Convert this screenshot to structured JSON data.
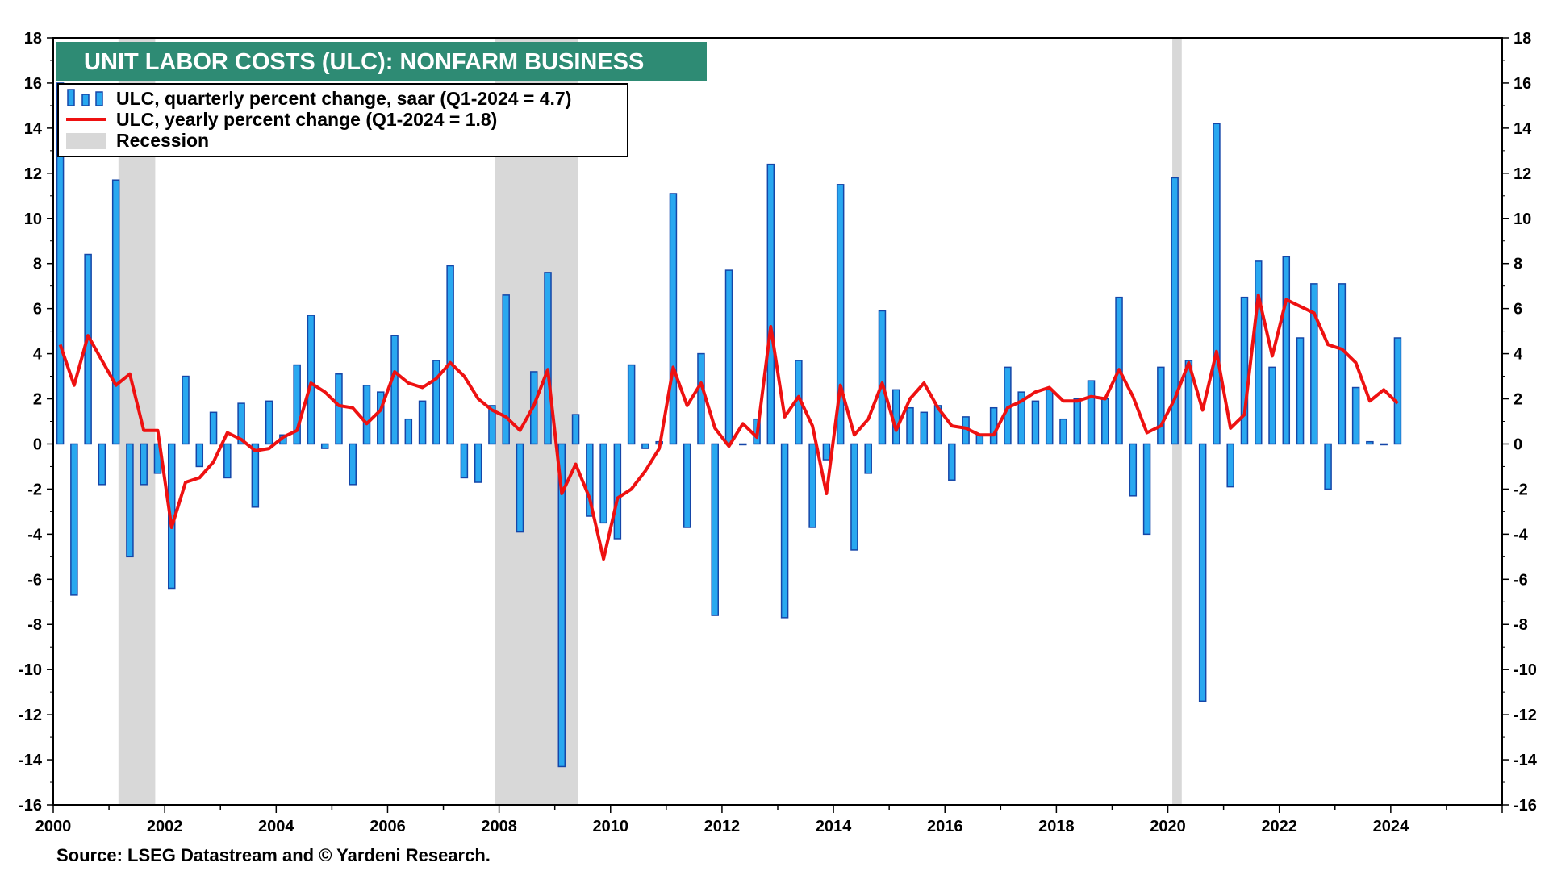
{
  "chart_data": {
    "type": "bar+line",
    "title": "UNIT LABOR COSTS (ULC): NONFARM BUSINESS",
    "source": "Source: LSEG Datastream and © Yardeni Research.",
    "xlabel": "",
    "ylabel": "",
    "x_range": [
      2000,
      2026
    ],
    "ylim": [
      -16,
      18
    ],
    "y_ticks": [
      18,
      16,
      14,
      12,
      10,
      8,
      6,
      4,
      2,
      0,
      -2,
      -4,
      -6,
      -8,
      -10,
      -12,
      -14,
      -16
    ],
    "x_ticks": [
      2000,
      2002,
      2004,
      2006,
      2008,
      2010,
      2012,
      2014,
      2016,
      2018,
      2020,
      2022,
      2024
    ],
    "legend": {
      "bars": "ULC, quarterly percent change, saar (Q1-2024 = 4.7)",
      "line": "ULC, yearly percent change (Q1-2024 = 1.8)",
      "recession": "Recession"
    },
    "colors": {
      "bar_fill": "#29a8f0",
      "bar_edge": "#1546a8",
      "line": "#ee1111",
      "recession": "#d8d8d8",
      "title_bg": "#2e8b74",
      "axis": "#000000"
    },
    "recessions": [
      [
        2001.17,
        2001.83
      ],
      [
        2007.92,
        2009.42
      ],
      [
        2020.08,
        2020.25
      ]
    ],
    "start_year": 2000,
    "quarterly_change": [
      16.0,
      -6.7,
      8.4,
      -1.8,
      11.7,
      -5.0,
      -1.8,
      -1.3,
      -6.4,
      3.0,
      -1.0,
      1.4,
      -1.5,
      1.8,
      -2.8,
      1.9,
      0.4,
      3.5,
      5.7,
      -0.2,
      3.1,
      -1.8,
      2.6,
      2.3,
      4.8,
      1.1,
      1.9,
      3.7,
      7.9,
      -1.5,
      -1.7,
      1.7,
      6.6,
      -3.9,
      3.2,
      7.6,
      -14.3,
      1.3,
      -3.2,
      -3.5,
      -4.2,
      3.5,
      -0.2,
      0.1,
      11.1,
      -3.7,
      4.0,
      -7.6,
      7.7,
      0.0,
      1.1,
      12.4,
      -7.7,
      3.7,
      -3.7,
      -0.7,
      11.5,
      -4.7,
      -1.3,
      5.9,
      2.4,
      1.6,
      1.4,
      1.7,
      -1.6,
      1.2,
      0.4,
      1.6,
      3.4,
      2.3,
      1.9,
      2.4,
      1.1,
      2.0,
      2.8,
      2.0,
      6.5,
      -2.3,
      -4.0,
      3.4,
      11.8,
      3.7,
      -11.4,
      14.2,
      -1.9,
      6.5,
      8.1,
      3.4,
      8.3,
      4.7,
      7.1,
      -2.0,
      7.1,
      2.5,
      0.1,
      0.0,
      4.7
    ],
    "yearly_change": [
      4.4,
      2.6,
      4.8,
      3.7,
      2.6,
      3.1,
      0.6,
      0.6,
      -3.7,
      -1.7,
      -1.5,
      -0.8,
      0.5,
      0.2,
      -0.3,
      -0.2,
      0.3,
      0.6,
      2.7,
      2.3,
      1.7,
      1.6,
      0.9,
      1.5,
      3.2,
      2.7,
      2.5,
      2.9,
      3.6,
      3.0,
      2.0,
      1.5,
      1.2,
      0.6,
      1.7,
      3.3,
      -2.2,
      -0.9,
      -2.4,
      -5.1,
      -2.4,
      -2.0,
      -1.2,
      -0.2,
      3.4,
      1.7,
      2.7,
      0.7,
      -0.1,
      0.9,
      0.3,
      5.2,
      1.2,
      2.1,
      0.8,
      -2.2,
      2.6,
      0.4,
      1.1,
      2.7,
      0.6,
      2.0,
      2.7,
      1.6,
      0.8,
      0.7,
      0.4,
      0.4,
      1.6,
      1.9,
      2.3,
      2.5,
      1.9,
      1.9,
      2.1,
      2.0,
      3.3,
      2.1,
      0.5,
      0.8,
      2.0,
      3.6,
      1.5,
      4.1,
      0.7,
      1.3,
      6.6,
      3.9,
      6.4,
      6.1,
      5.8,
      4.4,
      4.2,
      3.6,
      1.9,
      2.4,
      1.8
    ]
  }
}
